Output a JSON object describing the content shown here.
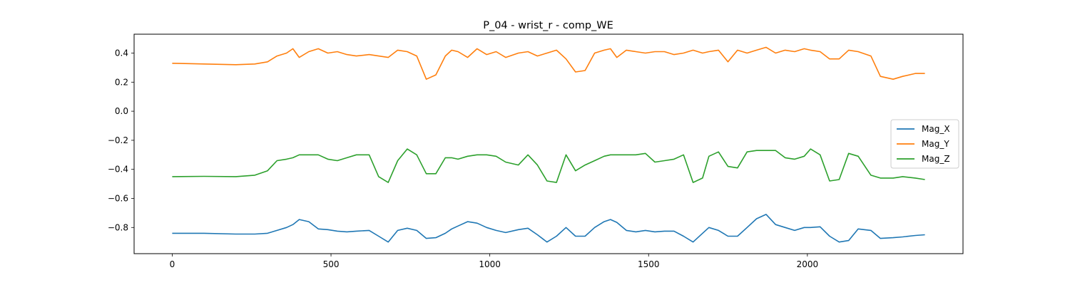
{
  "chart_data": {
    "type": "line",
    "title": "P_04 - wrist_r - comp_WE",
    "xlabel": "",
    "ylabel": "",
    "xlim": [
      -120,
      2490
    ],
    "ylim": [
      -0.98,
      0.53
    ],
    "x_ticks": [
      0,
      500,
      1000,
      1500,
      2000
    ],
    "y_ticks": [
      0.4,
      0.2,
      0.0,
      -0.2,
      -0.4,
      -0.6,
      -0.8
    ],
    "x_tick_labels": [
      "0",
      "500",
      "1000",
      "1500",
      "2000"
    ],
    "y_tick_labels": [
      "0.4",
      "0.2",
      "0.0",
      "−0.2",
      "−0.4",
      "−0.6",
      "−0.8"
    ],
    "grid": false,
    "legend_position": "center-right",
    "x": [
      0,
      100,
      200,
      260,
      300,
      330,
      360,
      380,
      400,
      430,
      460,
      490,
      520,
      550,
      580,
      620,
      650,
      680,
      710,
      740,
      770,
      800,
      830,
      860,
      880,
      900,
      930,
      960,
      990,
      1020,
      1050,
      1090,
      1120,
      1150,
      1180,
      1210,
      1240,
      1270,
      1300,
      1330,
      1360,
      1380,
      1400,
      1430,
      1460,
      1490,
      1520,
      1550,
      1580,
      1610,
      1640,
      1670,
      1690,
      1720,
      1750,
      1780,
      1810,
      1840,
      1870,
      1900,
      1930,
      1960,
      1990,
      2010,
      2040,
      2070,
      2100,
      2130,
      2160,
      2200,
      2230,
      2270,
      2300,
      2340,
      2370
    ],
    "series": [
      {
        "name": "Mag_X",
        "color": "#1f77b4",
        "values": [
          -0.84,
          -0.84,
          -0.845,
          -0.845,
          -0.84,
          -0.82,
          -0.8,
          -0.78,
          -0.745,
          -0.76,
          -0.81,
          -0.815,
          -0.825,
          -0.83,
          -0.825,
          -0.82,
          -0.86,
          -0.9,
          -0.82,
          -0.805,
          -0.82,
          -0.875,
          -0.87,
          -0.84,
          -0.81,
          -0.79,
          -0.76,
          -0.77,
          -0.8,
          -0.82,
          -0.835,
          -0.815,
          -0.805,
          -0.85,
          -0.9,
          -0.86,
          -0.8,
          -0.86,
          -0.86,
          -0.8,
          -0.76,
          -0.745,
          -0.765,
          -0.82,
          -0.83,
          -0.82,
          -0.83,
          -0.825,
          -0.825,
          -0.86,
          -0.9,
          -0.84,
          -0.8,
          -0.82,
          -0.86,
          -0.86,
          -0.8,
          -0.74,
          -0.71,
          -0.78,
          -0.8,
          -0.82,
          -0.8,
          -0.8,
          -0.795,
          -0.86,
          -0.9,
          -0.89,
          -0.81,
          -0.82,
          -0.875,
          -0.87,
          -0.865,
          -0.855,
          -0.85
        ]
      },
      {
        "name": "Mag_Y",
        "color": "#ff7f0e",
        "values": [
          0.33,
          0.325,
          0.32,
          0.325,
          0.34,
          0.38,
          0.4,
          0.43,
          0.37,
          0.41,
          0.43,
          0.4,
          0.41,
          0.39,
          0.38,
          0.39,
          0.38,
          0.37,
          0.42,
          0.41,
          0.38,
          0.22,
          0.25,
          0.38,
          0.42,
          0.41,
          0.37,
          0.43,
          0.39,
          0.41,
          0.37,
          0.4,
          0.41,
          0.38,
          0.4,
          0.42,
          0.36,
          0.27,
          0.28,
          0.4,
          0.42,
          0.43,
          0.37,
          0.42,
          0.41,
          0.4,
          0.41,
          0.41,
          0.39,
          0.4,
          0.42,
          0.4,
          0.41,
          0.42,
          0.34,
          0.42,
          0.4,
          0.42,
          0.44,
          0.4,
          0.42,
          0.41,
          0.43,
          0.42,
          0.41,
          0.36,
          0.36,
          0.42,
          0.41,
          0.38,
          0.24,
          0.22,
          0.24,
          0.26,
          0.26
        ]
      },
      {
        "name": "Mag_Z",
        "color": "#2ca02c",
        "values": [
          -0.45,
          -0.448,
          -0.45,
          -0.44,
          -0.41,
          -0.34,
          -0.33,
          -0.32,
          -0.3,
          -0.3,
          -0.3,
          -0.33,
          -0.34,
          -0.32,
          -0.3,
          -0.3,
          -0.45,
          -0.49,
          -0.34,
          -0.26,
          -0.3,
          -0.43,
          -0.43,
          -0.32,
          -0.32,
          -0.33,
          -0.31,
          -0.3,
          -0.3,
          -0.31,
          -0.35,
          -0.37,
          -0.3,
          -0.37,
          -0.48,
          -0.49,
          -0.3,
          -0.41,
          -0.37,
          -0.34,
          -0.31,
          -0.3,
          -0.3,
          -0.3,
          -0.3,
          -0.29,
          -0.35,
          -0.34,
          -0.33,
          -0.3,
          -0.49,
          -0.46,
          -0.31,
          -0.28,
          -0.38,
          -0.39,
          -0.28,
          -0.27,
          -0.27,
          -0.27,
          -0.32,
          -0.33,
          -0.31,
          -0.26,
          -0.3,
          -0.48,
          -0.47,
          -0.29,
          -0.31,
          -0.44,
          -0.46,
          -0.46,
          -0.45,
          -0.46,
          -0.47
        ]
      }
    ]
  }
}
